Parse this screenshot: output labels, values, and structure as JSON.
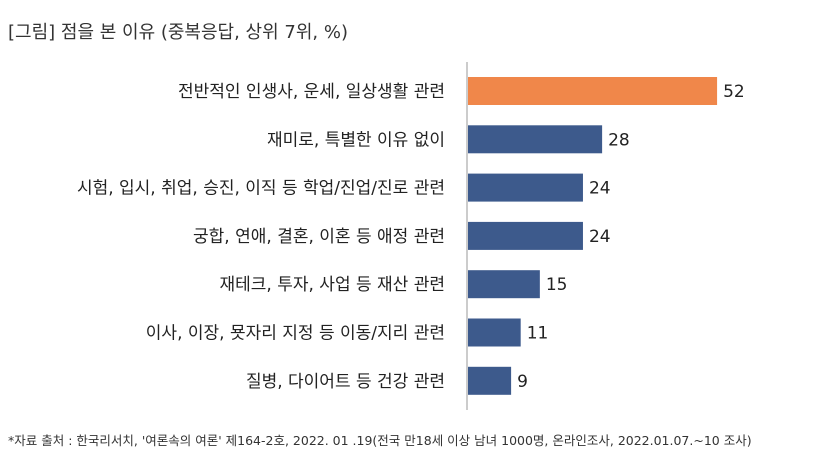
{
  "chart_data": {
    "type": "bar",
    "orientation": "horizontal",
    "title": "[그림] 점을 본 이유 (중복응답, 상위 7위, %)",
    "categories": [
      "전반적인 인생사, 운세, 일상생활 관련",
      "재미로, 특별한 이유 없이",
      "시험, 입시, 취업, 승진, 이직 등 학업/진업/진로 관련",
      "궁합, 연애, 결혼, 이혼 등 애정 관련",
      "재테크, 투자, 사업 등 재산 관련",
      "이사, 이장, 묫자리 지정 등 이동/지리 관련",
      "질병, 다이어트 등 건강 관련"
    ],
    "values": [
      52,
      28,
      24,
      24,
      15,
      11,
      9
    ],
    "value_labels": [
      "52",
      "28",
      "24",
      "24",
      "15",
      "11",
      "9"
    ],
    "xlim": [
      0,
      60
    ],
    "grid": false,
    "bar_colors": [
      "#f0874a",
      "#3d5a8c",
      "#3d5a8c",
      "#3d5a8c",
      "#3d5a8c",
      "#3d5a8c",
      "#3d5a8c"
    ]
  },
  "footnote": "*자료 출처 : 한국리서치, '여론속의 여론' 제164-2호, 2022. 01 .19(전국 만18세 이상 남녀 1000명, 온라인조사, 2022.01.07.~10 조사)"
}
